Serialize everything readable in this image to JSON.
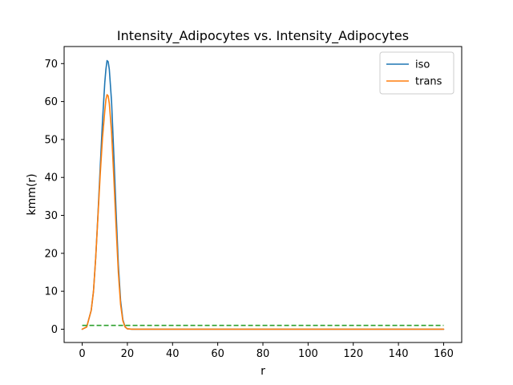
{
  "chart_data": {
    "type": "line",
    "title": "Intensity_Adipocytes vs. Intensity_Adipocytes",
    "xlabel": "r",
    "ylabel": "kmm(r)",
    "xlim": [
      -8,
      168
    ],
    "ylim": [
      -3.5,
      74.5
    ],
    "xticks": [
      0,
      20,
      40,
      60,
      80,
      100,
      120,
      140,
      160
    ],
    "yticks": [
      0,
      10,
      20,
      30,
      40,
      50,
      60,
      70
    ],
    "grid": false,
    "legend_position": "top-right",
    "series": [
      {
        "name": "iso",
        "color": "#1f77b4",
        "style": "solid",
        "x": [
          0,
          2,
          4,
          5,
          6,
          7,
          8,
          9,
          10,
          10.5,
          11,
          11.5,
          12,
          13,
          14,
          15,
          16,
          17,
          18,
          19,
          20,
          22,
          40,
          60,
          80,
          100,
          120,
          140,
          160
        ],
        "y": [
          0,
          0.6,
          5,
          10,
          19,
          30.5,
          43,
          55,
          65,
          68.5,
          70.8,
          70.5,
          68.5,
          60,
          46,
          31,
          17,
          7.5,
          2.5,
          0.6,
          0.1,
          0,
          0,
          0,
          0,
          0,
          0,
          0,
          0
        ]
      },
      {
        "name": "trans",
        "color": "#ff7f0e",
        "style": "solid",
        "x": [
          0,
          2,
          4,
          5,
          6,
          7,
          8,
          9,
          10,
          10.5,
          11,
          11.5,
          12,
          13,
          14,
          15,
          16,
          17,
          18,
          19,
          20,
          22,
          40,
          60,
          80,
          100,
          120,
          140,
          160
        ],
        "y": [
          0,
          0.6,
          5,
          10,
          19,
          30,
          41,
          50.5,
          57.5,
          60.5,
          61.8,
          61.5,
          59.5,
          52,
          40,
          27,
          15,
          6.5,
          2.2,
          0.6,
          0.1,
          0,
          0,
          0,
          0,
          0,
          0,
          0,
          0
        ]
      },
      {
        "color": "#2ca02c",
        "style": "dashed",
        "x": [
          0,
          160
        ],
        "y": [
          1,
          1
        ]
      }
    ]
  }
}
